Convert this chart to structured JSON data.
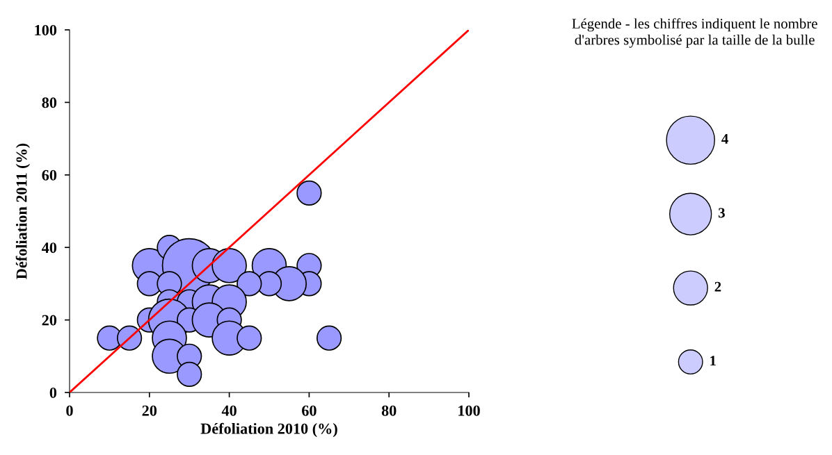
{
  "chart_data": {
    "type": "bubble",
    "xlabel": "Défoliation 2010 (%)",
    "ylabel": "Défoliation 2011 (%)",
    "legend_title": "Légende - les chiffres indiquent le nombre d'arbres symbolisé par la taille de la bulle",
    "xlim": [
      0,
      100
    ],
    "ylim": [
      0,
      100
    ],
    "xticks": [
      0,
      20,
      40,
      60,
      80,
      100
    ],
    "yticks": [
      0,
      20,
      40,
      60,
      80,
      100
    ],
    "grid": false,
    "size_legend": [
      4,
      3,
      2,
      1
    ],
    "series": [
      {
        "color": "#9999ff",
        "x": [
          10,
          15,
          20,
          20,
          25,
          30,
          35,
          40,
          25,
          50,
          60,
          60,
          55,
          50,
          45,
          25,
          30,
          35,
          40,
          20,
          25,
          30,
          35,
          40,
          25,
          40,
          45,
          65,
          25,
          30,
          30,
          60
        ],
        "values": [
          15,
          15,
          35,
          30,
          40,
          35,
          35,
          35,
          30,
          35,
          35,
          30,
          30,
          30,
          30,
          25,
          25,
          25,
          25,
          20,
          20,
          20,
          20,
          20,
          15,
          15,
          15,
          15,
          10,
          10,
          5,
          55
        ],
        "sizes": [
          1,
          1,
          2,
          1,
          1,
          5,
          2,
          2,
          1,
          2,
          1,
          1,
          2,
          1,
          1,
          1,
          1,
          2,
          2,
          1,
          3,
          1,
          2,
          1,
          2,
          2,
          1,
          1,
          2,
          1,
          1,
          1
        ]
      },
      {
        "type": "line",
        "color": "#ff0000",
        "x": [
          0,
          100
        ],
        "values": [
          0,
          100
        ]
      }
    ]
  }
}
